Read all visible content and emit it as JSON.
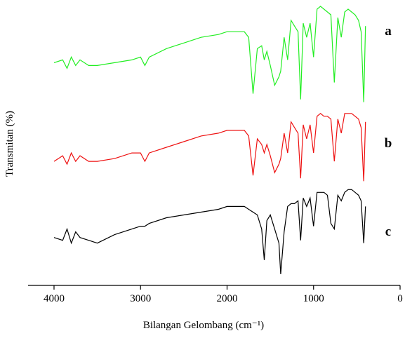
{
  "chart_data": {
    "type": "line",
    "x_label": "Bilangan Gelombang (cm⁻¹)",
    "y_label": "Transmitan (%)",
    "x": [
      4000,
      3900,
      3850,
      3800,
      3750,
      3700,
      3600,
      3500,
      3300,
      3100,
      3000,
      2950,
      2900,
      2700,
      2500,
      2300,
      2100,
      2000,
      1900,
      1800,
      1750,
      1700,
      1650,
      1600,
      1570,
      1540,
      1500,
      1450,
      1400,
      1380,
      1340,
      1300,
      1260,
      1220,
      1180,
      1150,
      1120,
      1080,
      1040,
      1000,
      960,
      920,
      880,
      840,
      800,
      760,
      720,
      680,
      640,
      600,
      560,
      520,
      480,
      450,
      420,
      400
    ],
    "series": [
      {
        "name": "a",
        "color": "#22ee22",
        "values": [
          79,
          80,
          77,
          81,
          78,
          80,
          78,
          78,
          79,
          80,
          81,
          78,
          81,
          84,
          86,
          88,
          89,
          90,
          90,
          90,
          88,
          68,
          84,
          85,
          80,
          83,
          78,
          71,
          74,
          76,
          88,
          80,
          94,
          92,
          90,
          66,
          93,
          88,
          93,
          81,
          98,
          99,
          98,
          97,
          96,
          72,
          95,
          88,
          97,
          98,
          97,
          96,
          94,
          90,
          65,
          92
        ]
      },
      {
        "name": "b",
        "color": "#ee1111",
        "values": [
          44,
          46,
          43,
          47,
          44,
          46,
          44,
          44,
          45,
          47,
          47,
          44,
          47,
          49,
          51,
          53,
          54,
          55,
          55,
          55,
          53,
          39,
          52,
          50,
          47,
          50,
          46,
          40,
          43,
          45,
          54,
          47,
          58,
          56,
          54,
          38,
          57,
          52,
          57,
          47,
          60,
          61,
          60,
          60,
          59,
          44,
          59,
          54,
          61,
          61,
          61,
          60,
          59,
          56,
          37,
          58
        ]
      },
      {
        "name": "c",
        "color": "#000000",
        "values": [
          17,
          16,
          20,
          15,
          19,
          17,
          16,
          15,
          18,
          20,
          21,
          21,
          22,
          24,
          25,
          26,
          27,
          28,
          28,
          28,
          27,
          26,
          25,
          20,
          9,
          23,
          25,
          20,
          15,
          4,
          19,
          28,
          29,
          29,
          30,
          16,
          31,
          28,
          31,
          21,
          33,
          33,
          33,
          32,
          22,
          20,
          32,
          30,
          33,
          34,
          34,
          33,
          32,
          30,
          15,
          28
        ]
      }
    ],
    "xlim": [
      4300,
      0
    ],
    "ylim": [
      0,
      100
    ],
    "xticks": [
      4000,
      3000,
      2000,
      1000,
      0
    ]
  }
}
